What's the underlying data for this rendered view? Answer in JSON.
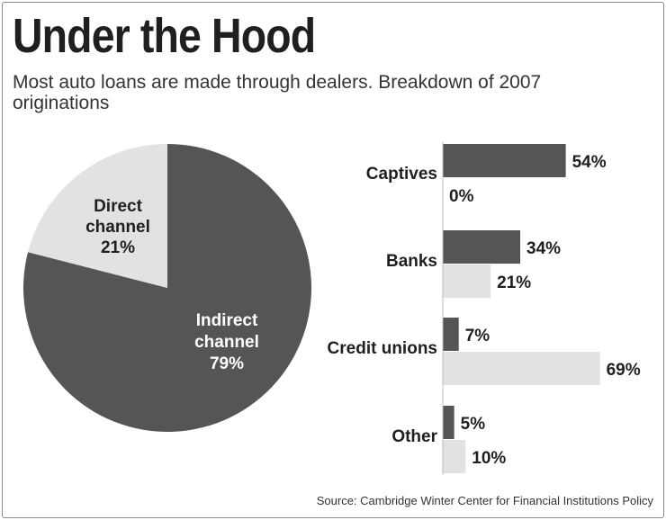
{
  "title": "Under the Hood",
  "subtitle": "Most auto loans are made through dealers. Breakdown of 2007 originations",
  "source": "Source: Cambridge Winter Center for Financial Institutions Policy",
  "colors": {
    "indirect": "#555555",
    "direct": "#e2e2e2",
    "text": "#1f1f1f"
  },
  "chart_data": [
    {
      "type": "pie",
      "slices": [
        {
          "label_line1": "Indirect",
          "label_line2": "channel",
          "value": 79,
          "value_label": "79%"
        },
        {
          "label_line1": "Direct",
          "label_line2": "channel",
          "value": 21,
          "value_label": "21%"
        }
      ]
    },
    {
      "type": "bar",
      "orientation": "horizontal",
      "categories": [
        "Captives",
        "Banks",
        "Credit unions",
        "Other"
      ],
      "series": [
        {
          "values": [
            54,
            34,
            7,
            5
          ],
          "labels": [
            "54%",
            "34%",
            "7%",
            "5%"
          ]
        },
        {
          "values": [
            0,
            21,
            69,
            10
          ],
          "labels": [
            "0%",
            "21%",
            "69%",
            "10%"
          ]
        }
      ]
    }
  ]
}
